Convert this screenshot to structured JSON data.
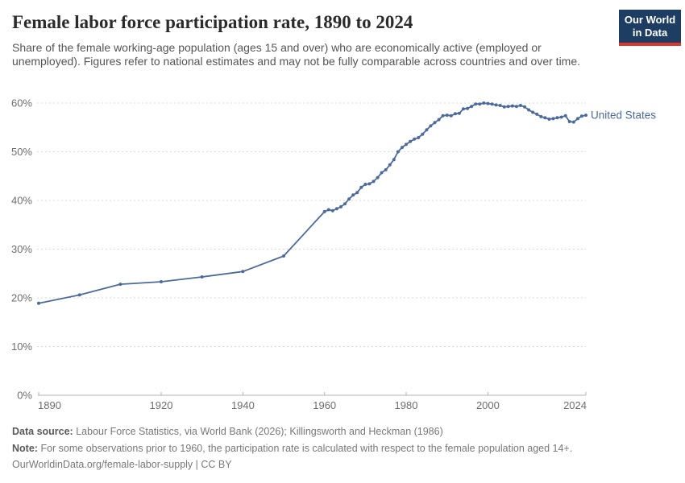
{
  "header": {
    "title": "Female labor force participation rate, 1890 to 2024",
    "subtitle": "Share of the female working-age population (ages 15 and over) who are economically active (employed or unemployed). Figures refer to national estimates and may not be fully comparable across countries and over time.",
    "logo": {
      "line1": "Our World",
      "line2": "in Data"
    }
  },
  "colors": {
    "series_blue": "#4C6A9C",
    "logo_navy": "#1d3d63",
    "logo_red": "#dc352c",
    "gridline": "#dadada",
    "axis": "#b3b3b3",
    "tick_text": "#6e6e6e"
  },
  "chart_data": {
    "type": "line",
    "title": "Female labor force participation rate, 1890 to 2024",
    "xlabel": "",
    "ylabel": "",
    "xlim": [
      1890,
      2024
    ],
    "ylim": [
      0,
      60
    ],
    "grid": "horizontal dashed",
    "legend_position": "end-of-line label",
    "x_ticks": [
      {
        "value": 1890,
        "label": "1890"
      },
      {
        "value": 1920,
        "label": "1920"
      },
      {
        "value": 1940,
        "label": "1940"
      },
      {
        "value": 1960,
        "label": "1960"
      },
      {
        "value": 1980,
        "label": "1980"
      },
      {
        "value": 2000,
        "label": "2000"
      },
      {
        "value": 2024,
        "label": "2024"
      }
    ],
    "y_ticks": [
      {
        "value": 0,
        "label": "0%"
      },
      {
        "value": 10,
        "label": "10%"
      },
      {
        "value": 20,
        "label": "20%"
      },
      {
        "value": 30,
        "label": "30%"
      },
      {
        "value": 40,
        "label": "40%"
      },
      {
        "value": 50,
        "label": "50%"
      },
      {
        "value": 60,
        "label": "60%"
      }
    ],
    "series": [
      {
        "name": "United States",
        "color": "#4C6A9C",
        "points": [
          [
            1890,
            18.9
          ],
          [
            1900,
            20.6
          ],
          [
            1910,
            22.8
          ],
          [
            1920,
            23.3
          ],
          [
            1930,
            24.3
          ],
          [
            1940,
            25.4
          ],
          [
            1950,
            28.6
          ],
          [
            1960,
            37.7
          ],
          [
            1961,
            38.1
          ],
          [
            1962,
            37.9
          ],
          [
            1963,
            38.3
          ],
          [
            1964,
            38.7
          ],
          [
            1965,
            39.3
          ],
          [
            1966,
            40.3
          ],
          [
            1967,
            41.1
          ],
          [
            1968,
            41.6
          ],
          [
            1969,
            42.7
          ],
          [
            1970,
            43.3
          ],
          [
            1971,
            43.4
          ],
          [
            1972,
            43.9
          ],
          [
            1973,
            44.7
          ],
          [
            1974,
            45.7
          ],
          [
            1975,
            46.3
          ],
          [
            1976,
            47.3
          ],
          [
            1977,
            48.4
          ],
          [
            1978,
            50.0
          ],
          [
            1979,
            50.9
          ],
          [
            1980,
            51.5
          ],
          [
            1981,
            52.1
          ],
          [
            1982,
            52.6
          ],
          [
            1983,
            52.9
          ],
          [
            1984,
            53.6
          ],
          [
            1985,
            54.5
          ],
          [
            1986,
            55.3
          ],
          [
            1987,
            56.0
          ],
          [
            1988,
            56.6
          ],
          [
            1989,
            57.4
          ],
          [
            1990,
            57.5
          ],
          [
            1991,
            57.4
          ],
          [
            1992,
            57.8
          ],
          [
            1993,
            57.9
          ],
          [
            1994,
            58.8
          ],
          [
            1995,
            58.9
          ],
          [
            1996,
            59.3
          ],
          [
            1997,
            59.8
          ],
          [
            1998,
            59.8
          ],
          [
            1999,
            60.0
          ],
          [
            2000,
            59.9
          ],
          [
            2001,
            59.8
          ],
          [
            2002,
            59.6
          ],
          [
            2003,
            59.5
          ],
          [
            2004,
            59.2
          ],
          [
            2005,
            59.3
          ],
          [
            2006,
            59.4
          ],
          [
            2007,
            59.3
          ],
          [
            2008,
            59.5
          ],
          [
            2009,
            59.2
          ],
          [
            2010,
            58.6
          ],
          [
            2011,
            58.1
          ],
          [
            2012,
            57.7
          ],
          [
            2013,
            57.2
          ],
          [
            2014,
            57.0
          ],
          [
            2015,
            56.7
          ],
          [
            2016,
            56.8
          ],
          [
            2017,
            57.0
          ],
          [
            2018,
            57.1
          ],
          [
            2019,
            57.4
          ],
          [
            2020,
            56.2
          ],
          [
            2021,
            56.1
          ],
          [
            2022,
            56.8
          ],
          [
            2023,
            57.3
          ],
          [
            2024,
            57.5
          ]
        ]
      }
    ]
  },
  "footer": {
    "source_label": "Data source:",
    "source_text": "Labour Force Statistics, via World Bank (2026); Killingsworth and Heckman (1986)",
    "note_label": "Note:",
    "note_text": "For some observations prior to 1960, the participation rate is calculated with respect to the female population aged 14+.",
    "url": "OurWorldinData.org/female-labor-supply",
    "license_suffix": " | CC BY"
  }
}
